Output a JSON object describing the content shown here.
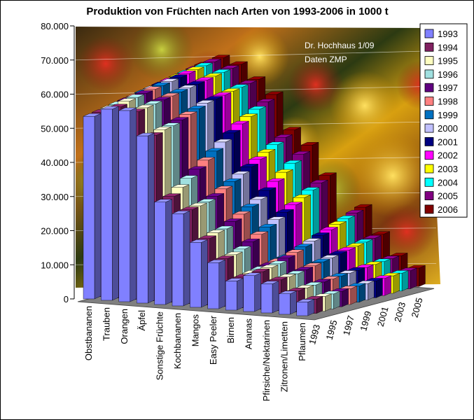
{
  "chart_data": {
    "type": "bar",
    "title": "Produktion von Früchten nach Arten von 1993-2006 in 1000 t",
    "annotation": [
      "Dr. Hochhaus 1/09",
      "Daten ZMP"
    ],
    "ylim": [
      0,
      80000
    ],
    "yticks": [
      "0",
      "10.000",
      "20.000",
      "30.000",
      "40.000",
      "50.000",
      "60.000",
      "70.000",
      "80.000"
    ],
    "depth_labels": [
      "1993",
      "1995",
      "1997",
      "1999",
      "2001",
      "2003",
      "2005"
    ],
    "categories": [
      "Obstbananen",
      "Trauben",
      "Orangen",
      "Äpfel",
      "Sonstige Früchte",
      "Kochbananen",
      "Mangos",
      "Easy Peeler",
      "Birnen",
      "Ananas",
      "Pfirsiche/Nektarinen",
      "Zitronen/Limetten",
      "Pflaumen"
    ],
    "series": [
      {
        "name": "1993",
        "color": "#8080ff",
        "values": [
          53500,
          56000,
          56000,
          49000,
          30000,
          27000,
          19000,
          13500,
          8500,
          10500,
          8500,
          6000,
          4000
        ]
      },
      {
        "name": "1994",
        "color": "#802060",
        "values": [
          54000,
          56000,
          55000,
          48500,
          31000,
          27500,
          19500,
          14000,
          9000,
          11000,
          9000,
          6200,
          4200
        ]
      },
      {
        "name": "1995",
        "color": "#ffffc0",
        "values": [
          54500,
          57000,
          55500,
          49500,
          33000,
          28000,
          20500,
          14500,
          9500,
          11500,
          9200,
          6400,
          4300
        ]
      },
      {
        "name": "1996",
        "color": "#a0e0e0",
        "values": [
          55000,
          57500,
          56000,
          50000,
          35000,
          28500,
          21000,
          15500,
          10000,
          12000,
          9500,
          6600,
          4400
        ]
      },
      {
        "name": "1997",
        "color": "#600080",
        "values": [
          55500,
          58000,
          56500,
          51000,
          37000,
          29500,
          22500,
          17000,
          10500,
          13000,
          10000,
          6800,
          4500
        ]
      },
      {
        "name": "1998",
        "color": "#ff8080",
        "values": [
          56000,
          58500,
          57000,
          52000,
          39000,
          31000,
          24000,
          18500,
          11000,
          14000,
          10500,
          7000,
          4600
        ]
      },
      {
        "name": "1999",
        "color": "#0070c0",
        "values": [
          56500,
          59000,
          57500,
          53000,
          41000,
          32500,
          25500,
          20000,
          11500,
          15000,
          11000,
          7200,
          4700
        ]
      },
      {
        "name": "2000",
        "color": "#c0c0ff",
        "values": [
          57000,
          59500,
          58000,
          54000,
          43000,
          34000,
          27000,
          21500,
          12000,
          16000,
          11500,
          7400,
          4800
        ]
      },
      {
        "name": "2001",
        "color": "#000080",
        "values": [
          57500,
          60000,
          58500,
          54500,
          45000,
          35500,
          29000,
          23000,
          12500,
          17000,
          12000,
          7600,
          4900
        ]
      },
      {
        "name": "2002",
        "color": "#ff00ff",
        "values": [
          58000,
          60500,
          59000,
          55000,
          47000,
          37000,
          31000,
          24500,
          13000,
          18000,
          12500,
          7800,
          5000
        ]
      },
      {
        "name": "2003",
        "color": "#ffff00",
        "values": [
          58500,
          61000,
          59500,
          55500,
          48500,
          38500,
          33000,
          26000,
          13500,
          19000,
          13000,
          8000,
          5100
        ]
      },
      {
        "name": "2004",
        "color": "#00ffff",
        "values": [
          59000,
          61500,
          60000,
          56000,
          50000,
          40000,
          35000,
          27500,
          14000,
          20000,
          13500,
          8200,
          5200
        ]
      },
      {
        "name": "2005",
        "color": "#800080",
        "values": [
          59500,
          62000,
          60500,
          56500,
          51500,
          41500,
          37000,
          29000,
          14500,
          21000,
          14000,
          8400,
          5300
        ]
      },
      {
        "name": "2006",
        "color": "#800000",
        "values": [
          60000,
          62500,
          61000,
          57000,
          53000,
          43000,
          39000,
          30500,
          15000,
          22000,
          14500,
          8600,
          5400
        ]
      }
    ]
  }
}
